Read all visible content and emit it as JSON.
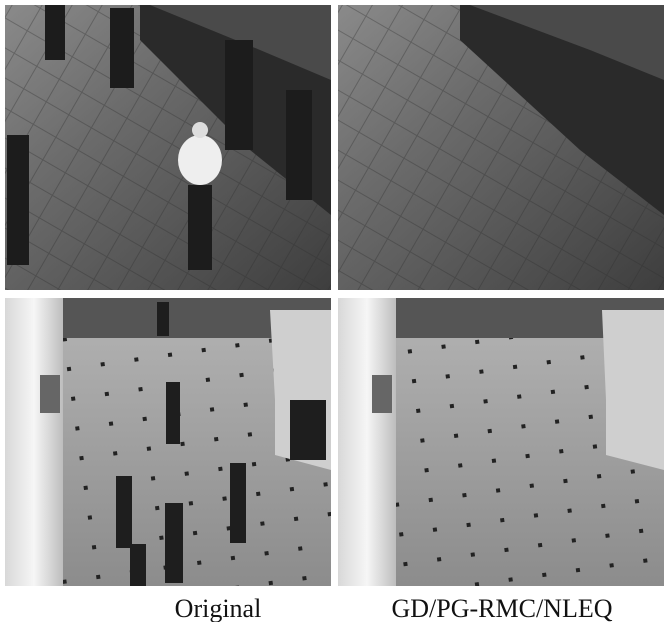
{
  "captions": [
    "Original",
    "GD/PG-RMC/NLEQ"
  ]
}
